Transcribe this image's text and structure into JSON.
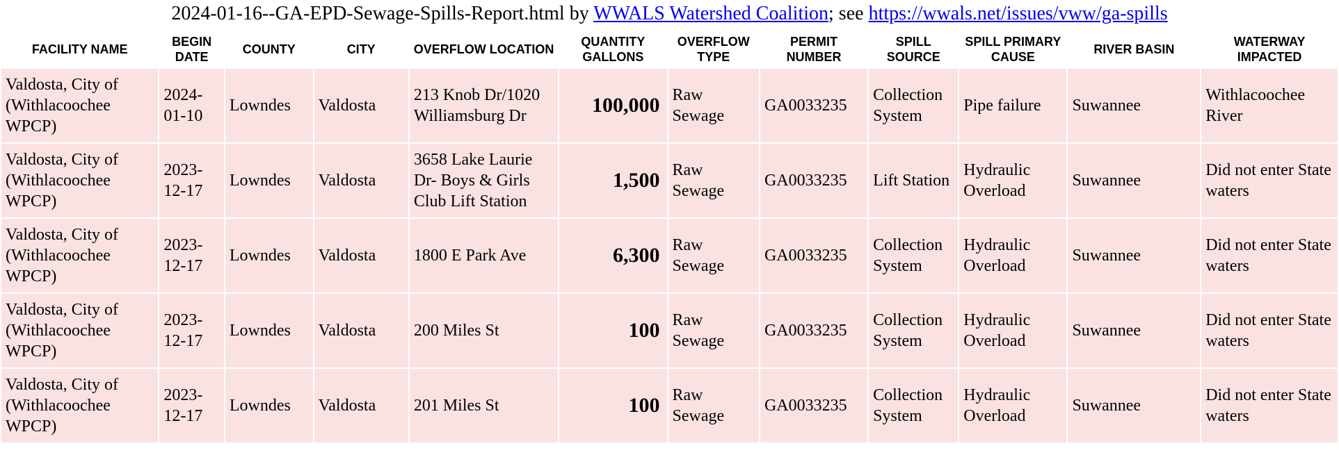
{
  "title": {
    "prefix": "2024-01-16--GA-EPD-Sewage-Spills-Report.html by ",
    "org_link_text": "WWALS Watershed Coalition",
    "org_link_href": "#",
    "middle": "; see ",
    "url_link_text": "https://wwals.net/issues/vww/ga-spills",
    "url_link_href": "#"
  },
  "table": {
    "columns": [
      "FACILITY NAME",
      "BEGIN DATE",
      "COUNTY",
      "CITY",
      "OVERFLOW LOCATION",
      "QUANTITY GALLONS",
      "OVERFLOW TYPE",
      "PERMIT NUMBER",
      "SPILL SOURCE",
      "SPILL PRIMARY CAUSE",
      "RIVER BASIN",
      "WATERWAY IMPACTED"
    ],
    "rows": [
      {
        "facility": "Valdosta, City of (Withlacoochee WPCP)",
        "begin_date": "2024-01-10",
        "county": "Lowndes",
        "city": "Valdosta",
        "location": "213 Knob Dr/1020 Williamsburg Dr",
        "quantity": "100,000",
        "overflow_type": "Raw Sewage",
        "permit": "GA0033235",
        "source": "Collection System",
        "cause": "Pipe failure",
        "basin": "Suwannee",
        "waterway": "Withlacoochee River"
      },
      {
        "facility": "Valdosta, City of (Withlacoochee WPCP)",
        "begin_date": "2023-12-17",
        "county": "Lowndes",
        "city": "Valdosta",
        "location": "3658 Lake Laurie Dr- Boys & Girls Club Lift Station",
        "quantity": "1,500",
        "overflow_type": "Raw Sewage",
        "permit": "GA0033235",
        "source": "Lift Station",
        "cause": "Hydraulic Overload",
        "basin": "Suwannee",
        "waterway": "Did not enter State waters"
      },
      {
        "facility": "Valdosta, City of (Withlacoochee WPCP)",
        "begin_date": "2023-12-17",
        "county": "Lowndes",
        "city": "Valdosta",
        "location": "1800 E Park Ave",
        "quantity": "6,300",
        "overflow_type": "Raw Sewage",
        "permit": "GA0033235",
        "source": "Collection System",
        "cause": "Hydraulic Overload",
        "basin": "Suwannee",
        "waterway": "Did not enter State waters"
      },
      {
        "facility": "Valdosta, City of (Withlacoochee WPCP)",
        "begin_date": "2023-12-17",
        "county": "Lowndes",
        "city": "Valdosta",
        "location": "200 Miles St",
        "quantity": "100",
        "overflow_type": "Raw Sewage",
        "permit": "GA0033235",
        "source": "Collection System",
        "cause": "Hydraulic Overload",
        "basin": "Suwannee",
        "waterway": "Did not enter State waters"
      },
      {
        "facility": "Valdosta, City of (Withlacoochee WPCP)",
        "begin_date": "2023-12-17",
        "county": "Lowndes",
        "city": "Valdosta",
        "location": "201 Miles St",
        "quantity": "100",
        "overflow_type": "Raw Sewage",
        "permit": "GA0033235",
        "source": "Collection System",
        "cause": "Hydraulic Overload",
        "basin": "Suwannee",
        "waterway": "Did not enter State waters"
      }
    ],
    "style": {
      "row_bg": "#fbe2e2",
      "header_font": "Arial",
      "body_font": "Times New Roman",
      "link_color": "#0000EE",
      "quantity_bold": true
    }
  }
}
